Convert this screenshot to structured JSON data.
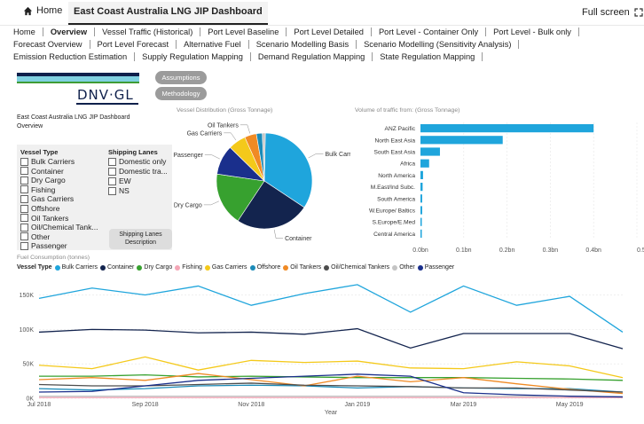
{
  "header": {
    "home_label": "Home",
    "dashboard_title": "East Coast Australia LNG JIP Dashboard",
    "fullscreen_label": "Full screen"
  },
  "tabs": [
    {
      "label": "Home",
      "active": false
    },
    {
      "label": "Overview",
      "active": true
    },
    {
      "label": "Vessel Traffic (Historical)",
      "active": false
    },
    {
      "label": "Port Level Baseline",
      "active": false
    },
    {
      "label": "Port Level Detailed",
      "active": false
    },
    {
      "label": "Port Level - Container Only",
      "active": false
    },
    {
      "label": "Port Level - Bulk only",
      "active": false
    },
    {
      "label": "Forecast Overview",
      "active": false
    },
    {
      "label": "Port Level Forecast",
      "active": false
    },
    {
      "label": "Alternative Fuel",
      "active": false
    },
    {
      "label": "Scenario Modelling Basis",
      "active": false
    },
    {
      "label": "Scenario Modelling (Sensitivity Analysis)",
      "active": false
    },
    {
      "label": "Emission Reduction Estimation",
      "active": false
    },
    {
      "label": "Supply Regulation Mapping",
      "active": false
    },
    {
      "label": "Demand Regulation Mapping",
      "active": false
    },
    {
      "label": "State Regulation Mapping",
      "active": false
    }
  ],
  "logo": {
    "text": "DNV·GL"
  },
  "overview": {
    "title": "East Coast Australia LNG JIP Dashboard",
    "subtitle": "Overview",
    "assumptions_label": "Assumptions",
    "methodology_label": "Methodology"
  },
  "filters": {
    "vessel_type_heading": "Vessel Type",
    "vessel_types": [
      "Bulk Carriers",
      "Container",
      "Dry Cargo",
      "Fishing",
      "Gas Carriers",
      "Offshore",
      "Oil Tankers",
      "Oil/Chemical Tank...",
      "Other",
      "Passenger"
    ],
    "shipping_lanes_heading": "Shipping Lanes",
    "shipping_lanes": [
      "Domestic only",
      "Domestic tra...",
      "EW",
      "NS"
    ],
    "shipping_lanes_button": "Shipping Lanes Description"
  },
  "colors": {
    "bulk_carriers": "#1fa5dc",
    "container": "#13244e",
    "dry_cargo": "#37a12f",
    "fishing": "#f4a6b6",
    "gas_carriers": "#f4c91a",
    "offshore": "#1b8bb8",
    "oil_tankers": "#f08a24",
    "oil_chemical_tankers": "#4d4d4d",
    "other": "#c4c4c4",
    "passenger": "#1a2f8c",
    "bar": "#1fa5dc"
  },
  "chart_data": [
    {
      "type": "pie",
      "title": "Vessel Distribution (Gross Tonnage)",
      "labels": [
        "Bulk Carriers",
        "Container",
        "Dry Cargo",
        "Passenger",
        "Gas Carriers",
        "Oil Tankers",
        "Offshore",
        "Other"
      ],
      "values": [
        34,
        25,
        18,
        10,
        6,
        4,
        2,
        1
      ]
    },
    {
      "type": "bar",
      "orientation": "horizontal",
      "title": "Volume of traffic from: (Gross Tonnage)",
      "categories": [
        "ANZ Pacific",
        "North East Asia",
        "South East Asia",
        "Africa",
        "North America",
        "M.East/Ind Subc.",
        "South America",
        "W.Europe/ Baltics",
        "S.Europe/E.Med",
        "Central America"
      ],
      "values": [
        0.4,
        0.19,
        0.045,
        0.02,
        0.006,
        0.005,
        0.004,
        0.004,
        0.003,
        0.003
      ],
      "xlim": [
        0,
        0.5
      ],
      "tick_labels": [
        "0.0bn",
        "0.1bn",
        "0.2bn",
        "0.3bn",
        "0.4bn",
        "0.5"
      ]
    },
    {
      "type": "line",
      "title": "Fuel Consumption (tonnes)",
      "legend_title": "Vessel Type",
      "xlabel": "Year",
      "ylim": [
        0,
        170000
      ],
      "y_ticks": [
        0,
        50000,
        100000,
        150000
      ],
      "y_tick_labels": [
        "0K",
        "50K",
        "100K",
        "150K"
      ],
      "x_tick_labels": [
        "Jul 2018",
        "Sep 2018",
        "Nov 2018",
        "Jan 2019",
        "Mar 2019",
        "May 2019"
      ],
      "x": [
        "2018-07",
        "2018-08",
        "2018-09",
        "2018-10",
        "2018-11",
        "2018-12",
        "2019-01",
        "2019-02",
        "2019-03",
        "2019-04",
        "2019-05",
        "2019-06"
      ],
      "series": [
        {
          "name": "Bulk Carriers",
          "color": "#1fa5dc",
          "values": [
            145000,
            160000,
            150000,
            163000,
            135000,
            152000,
            165000,
            125000,
            163000,
            135000,
            148000,
            96000
          ]
        },
        {
          "name": "Container",
          "color": "#13244e",
          "values": [
            96000,
            100000,
            99000,
            95000,
            96000,
            93000,
            101000,
            73000,
            94000,
            94000,
            94000,
            72000
          ]
        },
        {
          "name": "Dry Cargo",
          "color": "#37a12f",
          "values": [
            32000,
            32000,
            34000,
            31000,
            32000,
            31000,
            30000,
            30000,
            30000,
            29000,
            28000,
            26000
          ]
        },
        {
          "name": "Fishing",
          "color": "#f4a6b6",
          "values": [
            1000,
            1000,
            1000,
            1000,
            1000,
            1000,
            1000,
            1000,
            1000,
            1000,
            1000,
            1000
          ]
        },
        {
          "name": "Gas Carriers",
          "color": "#f4c91a",
          "values": [
            48000,
            43000,
            60000,
            41000,
            55000,
            52000,
            54000,
            44000,
            43000,
            53000,
            47000,
            30000
          ]
        },
        {
          "name": "Offshore",
          "color": "#1b8bb8",
          "values": [
            14000,
            12000,
            14000,
            18000,
            19000,
            18000,
            15000,
            17000,
            15000,
            14000,
            14000,
            9000
          ]
        },
        {
          "name": "Oil Tankers",
          "color": "#f08a24",
          "values": [
            27000,
            30000,
            26000,
            36000,
            27000,
            18000,
            32000,
            24000,
            30000,
            21000,
            13000,
            7000
          ]
        },
        {
          "name": "Oil/Chemical Tankers",
          "color": "#4d4d4d",
          "values": [
            20000,
            18000,
            18000,
            20000,
            22000,
            19000,
            18000,
            17000,
            15000,
            15000,
            12000,
            9000
          ]
        },
        {
          "name": "Other",
          "color": "#c4c4c4",
          "values": [
            3000,
            3000,
            3000,
            3000,
            3000,
            3000,
            3000,
            3000,
            3000,
            3000,
            3000,
            2000
          ]
        },
        {
          "name": "Passenger",
          "color": "#1a2f8c",
          "values": [
            9000,
            10000,
            18000,
            26000,
            29000,
            32000,
            35000,
            32000,
            8000,
            5000,
            3000,
            2000
          ]
        }
      ]
    }
  ]
}
